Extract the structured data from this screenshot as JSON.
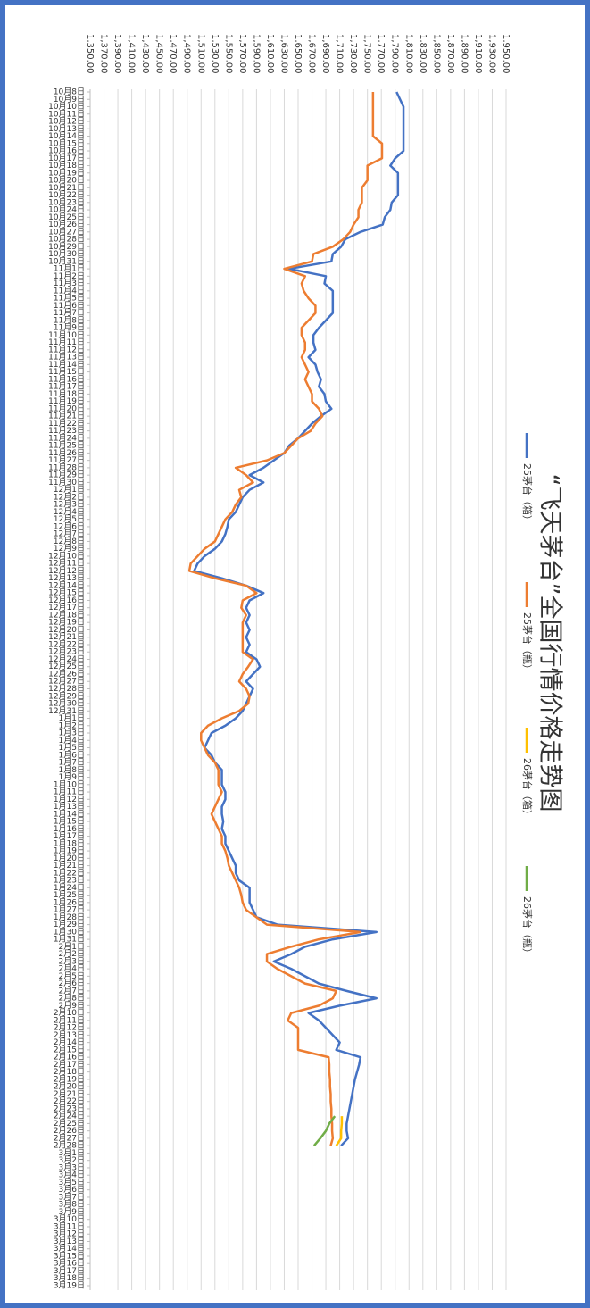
{
  "chart_data": {
    "type": "line",
    "title": "“飞天茅台”全国行情价格走势图",
    "categories": [
      "10月8日",
      "10月9日",
      "10月10日",
      "10月11日",
      "10月12日",
      "10月13日",
      "10月14日",
      "10月15日",
      "10月16日",
      "10月17日",
      "10月18日",
      "10月19日",
      "10月20日",
      "10月21日",
      "10月22日",
      "10月23日",
      "10月24日",
      "10月25日",
      "10月26日",
      "10月27日",
      "10月28日",
      "10月29日",
      "10月30日",
      "10月31日",
      "11月1日",
      "11月2日",
      "11月3日",
      "11月4日",
      "11月5日",
      "11月6日",
      "11月7日",
      "11月8日",
      "11月9日",
      "11月10日",
      "11月11日",
      "11月12日",
      "11月13日",
      "11月14日",
      "11月15日",
      "11月16日",
      "11月17日",
      "11月18日",
      "11月19日",
      "11月20日",
      "11月21日",
      "11月22日",
      "11月23日",
      "11月24日",
      "11月25日",
      "11月26日",
      "11月27日",
      "11月28日",
      "11月29日",
      "11月30日",
      "12月1日",
      "12月2日",
      "12月3日",
      "12月4日",
      "12月5日",
      "12月6日",
      "12月7日",
      "12月8日",
      "12月9日",
      "12月10日",
      "12月11日",
      "12月12日",
      "12月13日",
      "12月14日",
      "12月15日",
      "12月16日",
      "12月17日",
      "12月18日",
      "12月19日",
      "12月20日",
      "12月21日",
      "12月22日",
      "12月23日",
      "12月24日",
      "12月25日",
      "12月26日",
      "12月27日",
      "12月28日",
      "12月29日",
      "12月30日",
      "12月31日",
      "1月1日",
      "1月2日",
      "1月3日",
      "1月4日",
      "1月5日",
      "1月6日",
      "1月7日",
      "1月8日",
      "1月9日",
      "1月10日",
      "1月11日",
      "1月12日",
      "1月13日",
      "1月14日",
      "1月15日",
      "1月16日",
      "1月17日",
      "1月18日",
      "1月19日",
      "1月20日",
      "1月21日",
      "1月22日",
      "1月23日",
      "1月24日",
      "1月25日",
      "1月26日",
      "1月27日",
      "1月28日",
      "1月29日",
      "1月30日",
      "1月31日",
      "2月1日",
      "2月2日",
      "2月3日",
      "2月4日",
      "2月5日",
      "2月6日",
      "2月7日",
      "2月8日",
      "2月9日",
      "2月10日",
      "2月11日",
      "2月12日",
      "2月13日",
      "2月14日",
      "2月15日",
      "2月16日",
      "2月17日",
      "2月18日",
      "2月19日",
      "2月20日",
      "2月21日",
      "2月22日",
      "2月23日",
      "2月24日",
      "2月25日",
      "2月26日",
      "2月27日",
      "2月28日",
      "3月1日",
      "3月2日",
      "3月3日",
      "3月4日",
      "3月5日",
      "3月6日",
      "3月7日",
      "3月8日",
      "3月9日",
      "3月10日",
      "3月11日",
      "3月12日",
      "3月13日",
      "3月14日",
      "3月15日",
      "3月16日",
      "3月17日",
      "3月18日",
      "3月19日"
    ],
    "series": [
      {
        "name": "25茅台（箱）",
        "color": "#4472c4",
        "values": [
          1792,
          1797,
          1802,
          1802,
          1802,
          1802,
          1802,
          1802,
          1802,
          1790,
          1783,
          1794,
          1794,
          1794,
          1794,
          1785,
          1783,
          1775,
          1772,
          1740,
          1718,
          1712,
          1700,
          1698,
          1637,
          1690,
          1688,
          1700,
          1700,
          1700,
          1700,
          1690,
          1680,
          1672,
          1672,
          1675,
          1665,
          1675,
          1678,
          1683,
          1680,
          1688,
          1690,
          1698,
          1683,
          1670,
          1660,
          1650,
          1637,
          1630,
          1615,
          1600,
          1580,
          1600,
          1580,
          1570,
          1565,
          1560,
          1550,
          1548,
          1545,
          1540,
          1530,
          1515,
          1505,
          1500,
          1540,
          1575,
          1600,
          1580,
          1575,
          1580,
          1575,
          1580,
          1575,
          1580,
          1575,
          1590,
          1595,
          1585,
          1575,
          1585,
          1580,
          1575,
          1570,
          1560,
          1545,
          1525,
          1520,
          1515,
          1525,
          1530,
          1540,
          1540,
          1540,
          1545,
          1545,
          1540,
          1540,
          1542,
          1540,
          1545,
          1545,
          1550,
          1555,
          1560,
          1560,
          1565,
          1580,
          1580,
          1580,
          1585,
          1590,
          1620,
          1763,
          1700,
          1660,
          1640,
          1615,
          1640,
          1660,
          1680,
          1720,
          1763,
          1710,
          1665,
          1680,
          1690,
          1700,
          1710,
          1705,
          1740,
          1738,
          1735,
          1732,
          1730,
          1728,
          1726,
          1724,
          1722,
          1720,
          1720,
          1722,
          1712,
          null,
          null,
          null,
          null,
          null,
          null,
          null,
          null,
          null,
          null,
          null,
          null,
          null,
          null,
          null,
          null,
          null,
          null,
          null
        ]
      },
      {
        "name": "25茅台（瓶）",
        "color": "#ed7d31",
        "values": [
          1758,
          1758,
          1758,
          1758,
          1758,
          1758,
          1758,
          1771,
          1771,
          1771,
          1750,
          1750,
          1750,
          1742,
          1742,
          1742,
          1737,
          1737,
          1730,
          1725,
          1715,
          1700,
          1672,
          1670,
          1630,
          1660,
          1655,
          1658,
          1665,
          1675,
          1675,
          1665,
          1655,
          1655,
          1660,
          1660,
          1655,
          1660,
          1665,
          1660,
          1665,
          1670,
          1670,
          1680,
          1685,
          1675,
          1668,
          1650,
          1640,
          1630,
          1605,
          1560,
          1575,
          1585,
          1565,
          1568,
          1560,
          1555,
          1545,
          1540,
          1535,
          1530,
          1515,
          1505,
          1495,
          1493,
          1530,
          1575,
          1590,
          1570,
          1568,
          1575,
          1570,
          1570,
          1570,
          1570,
          1570,
          1585,
          1578,
          1570,
          1565,
          1575,
          1580,
          1578,
          1565,
          1540,
          1520,
          1510,
          1510,
          1515,
          1520,
          1530,
          1535,
          1535,
          1535,
          1540,
          1535,
          1530,
          1525,
          1530,
          1535,
          1540,
          1540,
          1545,
          1548,
          1550,
          1555,
          1560,
          1565,
          1568,
          1570,
          1575,
          1590,
          1605,
          1740,
          1680,
          1640,
          1605,
          1605,
          1620,
          1640,
          1660,
          1705,
          1700,
          1680,
          1640,
          1635,
          1650,
          1650,
          1650,
          1650,
          1694,
          1695,
          1695,
          1696,
          1696,
          1697,
          1697,
          1698,
          1698,
          1699,
          1699,
          1700,
          1697,
          null,
          null,
          null,
          null,
          null,
          null,
          null,
          null,
          null,
          null,
          null,
          null,
          null,
          null,
          null,
          null,
          null,
          null,
          null
        ]
      },
      {
        "name": "26茅台（箱）",
        "color": "#ffc000",
        "values": [
          null,
          null,
          null,
          null,
          null,
          null,
          null,
          null,
          null,
          null,
          null,
          null,
          null,
          null,
          null,
          null,
          null,
          null,
          null,
          null,
          null,
          null,
          null,
          null,
          null,
          null,
          null,
          null,
          null,
          null,
          null,
          null,
          null,
          null,
          null,
          null,
          null,
          null,
          null,
          null,
          null,
          null,
          null,
          null,
          null,
          null,
          null,
          null,
          null,
          null,
          null,
          null,
          null,
          null,
          null,
          null,
          null,
          null,
          null,
          null,
          null,
          null,
          null,
          null,
          null,
          null,
          null,
          null,
          null,
          null,
          null,
          null,
          null,
          null,
          null,
          null,
          null,
          null,
          null,
          null,
          null,
          null,
          null,
          null,
          null,
          null,
          null,
          null,
          null,
          null,
          null,
          null,
          null,
          null,
          null,
          null,
          null,
          null,
          null,
          null,
          null,
          null,
          null,
          null,
          null,
          null,
          null,
          null,
          null,
          null,
          null,
          null,
          null,
          null,
          null,
          null,
          null,
          null,
          null,
          null,
          null,
          null,
          null,
          null,
          null,
          null,
          null,
          null,
          null,
          null,
          null,
          null,
          null,
          null,
          null,
          null,
          null,
          null,
          null,
          1713,
          1713,
          1712,
          1712,
          1705,
          null,
          null,
          null,
          null,
          null,
          null,
          null,
          null,
          null,
          null,
          null,
          null,
          null,
          null,
          null,
          null,
          null,
          null,
          null
        ]
      },
      {
        "name": "26茅台（瓶）",
        "color": "#70ad47",
        "values": [
          null,
          null,
          null,
          null,
          null,
          null,
          null,
          null,
          null,
          null,
          null,
          null,
          null,
          null,
          null,
          null,
          null,
          null,
          null,
          null,
          null,
          null,
          null,
          null,
          null,
          null,
          null,
          null,
          null,
          null,
          null,
          null,
          null,
          null,
          null,
          null,
          null,
          null,
          null,
          null,
          null,
          null,
          null,
          null,
          null,
          null,
          null,
          null,
          null,
          null,
          null,
          null,
          null,
          null,
          null,
          null,
          null,
          null,
          null,
          null,
          null,
          null,
          null,
          null,
          null,
          null,
          null,
          null,
          null,
          null,
          null,
          null,
          null,
          null,
          null,
          null,
          null,
          null,
          null,
          null,
          null,
          null,
          null,
          null,
          null,
          null,
          null,
          null,
          null,
          null,
          null,
          null,
          null,
          null,
          null,
          null,
          null,
          null,
          null,
          null,
          null,
          null,
          null,
          null,
          null,
          null,
          null,
          null,
          null,
          null,
          null,
          null,
          null,
          null,
          null,
          null,
          null,
          null,
          null,
          null,
          null,
          null,
          null,
          null,
          null,
          null,
          null,
          null,
          null,
          null,
          null,
          null,
          null,
          null,
          null,
          null,
          null,
          null,
          null,
          1703,
          1695,
          1690,
          1682,
          1673,
          null,
          null,
          null,
          null,
          null,
          null,
          null,
          null,
          null,
          null,
          null,
          null,
          null,
          null,
          null,
          null,
          null,
          null,
          null
        ]
      }
    ],
    "ylim": [
      1350,
      1950
    ],
    "yticks": [
      {
        "value": 1350,
        "label": "1,350.00"
      },
      {
        "value": 1370,
        "label": "1,370.00"
      },
      {
        "value": 1390,
        "label": "1,390.00"
      },
      {
        "value": 1410,
        "label": "1,410.00"
      },
      {
        "value": 1430,
        "label": "1,430.00"
      },
      {
        "value": 1450,
        "label": "1,450.00"
      },
      {
        "value": 1470,
        "label": "1,470.00"
      },
      {
        "value": 1490,
        "label": "1,490.00"
      },
      {
        "value": 1510,
        "label": "1,510.00"
      },
      {
        "value": 1530,
        "label": "1,530.00"
      },
      {
        "value": 1550,
        "label": "1,550.00"
      },
      {
        "value": 1570,
        "label": "1,570.00"
      },
      {
        "value": 1590,
        "label": "1,590.00"
      },
      {
        "value": 1610,
        "label": "1,610.00"
      },
      {
        "value": 1630,
        "label": "1,630.00"
      },
      {
        "value": 1650,
        "label": "1,650.00"
      },
      {
        "value": 1670,
        "label": "1,670.00"
      },
      {
        "value": 1690,
        "label": "1,690.00"
      },
      {
        "value": 1710,
        "label": "1,710.00"
      },
      {
        "value": 1730,
        "label": "1,730.00"
      },
      {
        "value": 1750,
        "label": "1,750.00"
      },
      {
        "value": 1770,
        "label": "1,770.00"
      },
      {
        "value": 1790,
        "label": "1,790.00"
      },
      {
        "value": 1810,
        "label": "1,810.00"
      },
      {
        "value": 1830,
        "label": "1,830.00"
      },
      {
        "value": 1850,
        "label": "1,850.00"
      },
      {
        "value": 1870,
        "label": "1,870.00"
      },
      {
        "value": 1890,
        "label": "1,890.00"
      },
      {
        "value": 1910,
        "label": "1,910.00"
      },
      {
        "value": 1930,
        "label": "1,930.00"
      },
      {
        "value": 1950,
        "label": "1,950.00"
      }
    ],
    "grid": true
  }
}
